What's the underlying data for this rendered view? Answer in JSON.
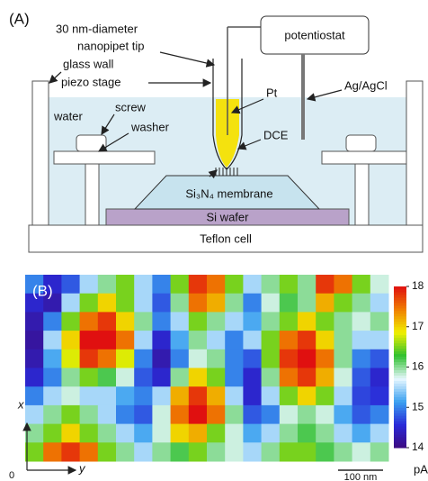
{
  "panel_a": {
    "label": "(A)",
    "tip_line1": "30 nm-diameter",
    "tip_line2": "nanopipet tip",
    "potentiostat": "potentiostat",
    "glass_wall": "glass wall",
    "piezo_stage": "piezo stage",
    "pt": "Pt",
    "ag_agcl": "Ag/AgCl",
    "water": "water",
    "screw": "screw",
    "washer": "washer",
    "dce": "DCE",
    "membrane": "Si₃N₄ membrane",
    "wafer": "Si wafer",
    "cell": "Teflon cell"
  },
  "chart_data": {
    "type": "heatmap",
    "label": "(B)",
    "x_label": "y",
    "y_label": "x",
    "origin": "0",
    "scale_bar": "100 nm",
    "colorbar_label": "pA",
    "zlim": [
      14,
      18
    ],
    "zticks": [
      14,
      15,
      16,
      17,
      18
    ],
    "colorscale": [
      "#3d0a80",
      "#2a2ad8",
      "#3aa0f0",
      "#e8f8ff",
      "#30c030",
      "#f0f000",
      "#f08000",
      "#e01010"
    ],
    "values": [
      [
        15,
        14.5,
        14.8,
        15.5,
        16,
        16.5,
        15.5,
        15,
        16.5,
        17.8,
        17.5,
        16.5,
        15.5,
        16,
        16.5,
        16,
        17.8,
        17.5,
        16.5,
        15.8
      ],
      [
        14.5,
        14.3,
        15.5,
        16.5,
        17,
        16.5,
        15.5,
        14.8,
        16,
        17.5,
        17.2,
        16,
        15,
        15.8,
        16.2,
        16,
        17.2,
        16.5,
        16,
        15.5
      ],
      [
        14.3,
        15,
        16.5,
        17.5,
        17.8,
        17,
        16,
        15,
        15.5,
        16.5,
        16,
        15.5,
        15.2,
        16,
        16.5,
        17,
        16.5,
        16,
        15.8,
        16
      ],
      [
        14.2,
        15.5,
        17,
        18,
        18,
        17.5,
        15.5,
        14.5,
        15.2,
        16,
        15.5,
        15,
        15.5,
        16.5,
        17.5,
        17.8,
        17,
        16,
        15.5,
        15.5
      ],
      [
        14.3,
        15.2,
        16.8,
        17.8,
        17.5,
        16.8,
        15,
        14.3,
        15,
        15.8,
        16,
        15,
        14.8,
        16.5,
        17.8,
        18,
        17.5,
        16,
        15,
        14.8
      ],
      [
        14.5,
        15,
        16,
        16.5,
        16.2,
        15.8,
        14.8,
        14.5,
        16,
        17,
        16.5,
        15,
        14.5,
        16,
        17.5,
        17.8,
        17.2,
        15.8,
        14.8,
        14.5
      ],
      [
        15,
        15.5,
        15.8,
        15.5,
        15.5,
        15.2,
        15,
        15.5,
        17.2,
        17.8,
        17.2,
        15.5,
        14.5,
        15.5,
        16.5,
        17,
        16.5,
        15.5,
        14.7,
        14.6
      ],
      [
        15.5,
        16,
        16.5,
        16,
        15.5,
        15,
        14.8,
        15.8,
        17.5,
        18,
        17.5,
        16,
        14.8,
        15,
        15.8,
        16,
        15.8,
        15.2,
        14.8,
        15
      ],
      [
        16,
        16.5,
        17,
        16.5,
        16,
        15.5,
        15.2,
        15.8,
        17,
        17.2,
        16.5,
        15.8,
        15.2,
        15.5,
        16,
        16.2,
        16,
        15.5,
        15.2,
        15.5
      ],
      [
        16.5,
        17.5,
        17.8,
        17.5,
        16.5,
        16,
        15.5,
        16,
        16.2,
        16.5,
        16,
        15.8,
        15.5,
        16,
        16.5,
        16.5,
        16.2,
        16,
        15.8,
        16
      ]
    ]
  }
}
